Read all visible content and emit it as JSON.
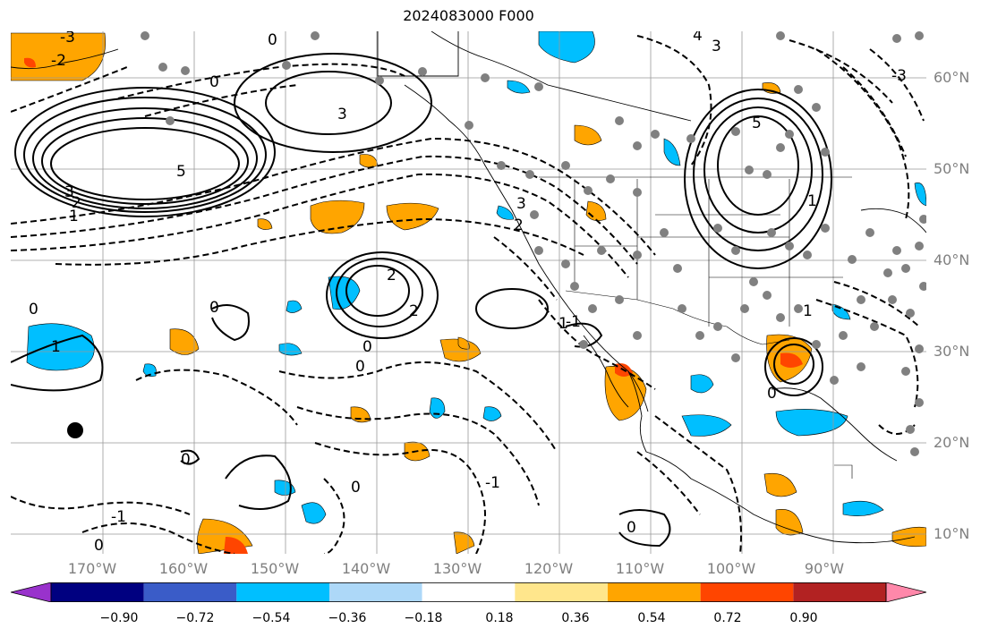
{
  "title": "2024083000 F000",
  "lon_labels": [
    "170°W",
    "160°W",
    "150°W",
    "140°W",
    "130°W",
    "120°W",
    "110°W",
    "100°W",
    "90°W"
  ],
  "lat_labels": [
    "60°N",
    "50°N",
    "40°N",
    "30°N",
    "20°N",
    "10°N"
  ],
  "contour_labels": [
    "-3",
    "-2",
    "-1",
    "0",
    "1",
    "2",
    "3",
    "4",
    "5"
  ],
  "colorbar": {
    "ticks": [
      "−0.90",
      "−0.72",
      "−0.54",
      "−0.36",
      "−0.18",
      "0.18",
      "0.36",
      "0.54",
      "0.72",
      "0.90"
    ],
    "colors": [
      "#9932cc",
      "#000080",
      "#3a5cc8",
      "#00bfff",
      "#add8f8",
      "#ffffff",
      "#ffe68c",
      "#ffa500",
      "#ff4500",
      "#b22222",
      "#ff88aa"
    ]
  },
  "field_colors": {
    "negative": "#00bfff",
    "positive": "#ffa500",
    "strong_positive": "#ff4500",
    "points": "#808080"
  }
}
